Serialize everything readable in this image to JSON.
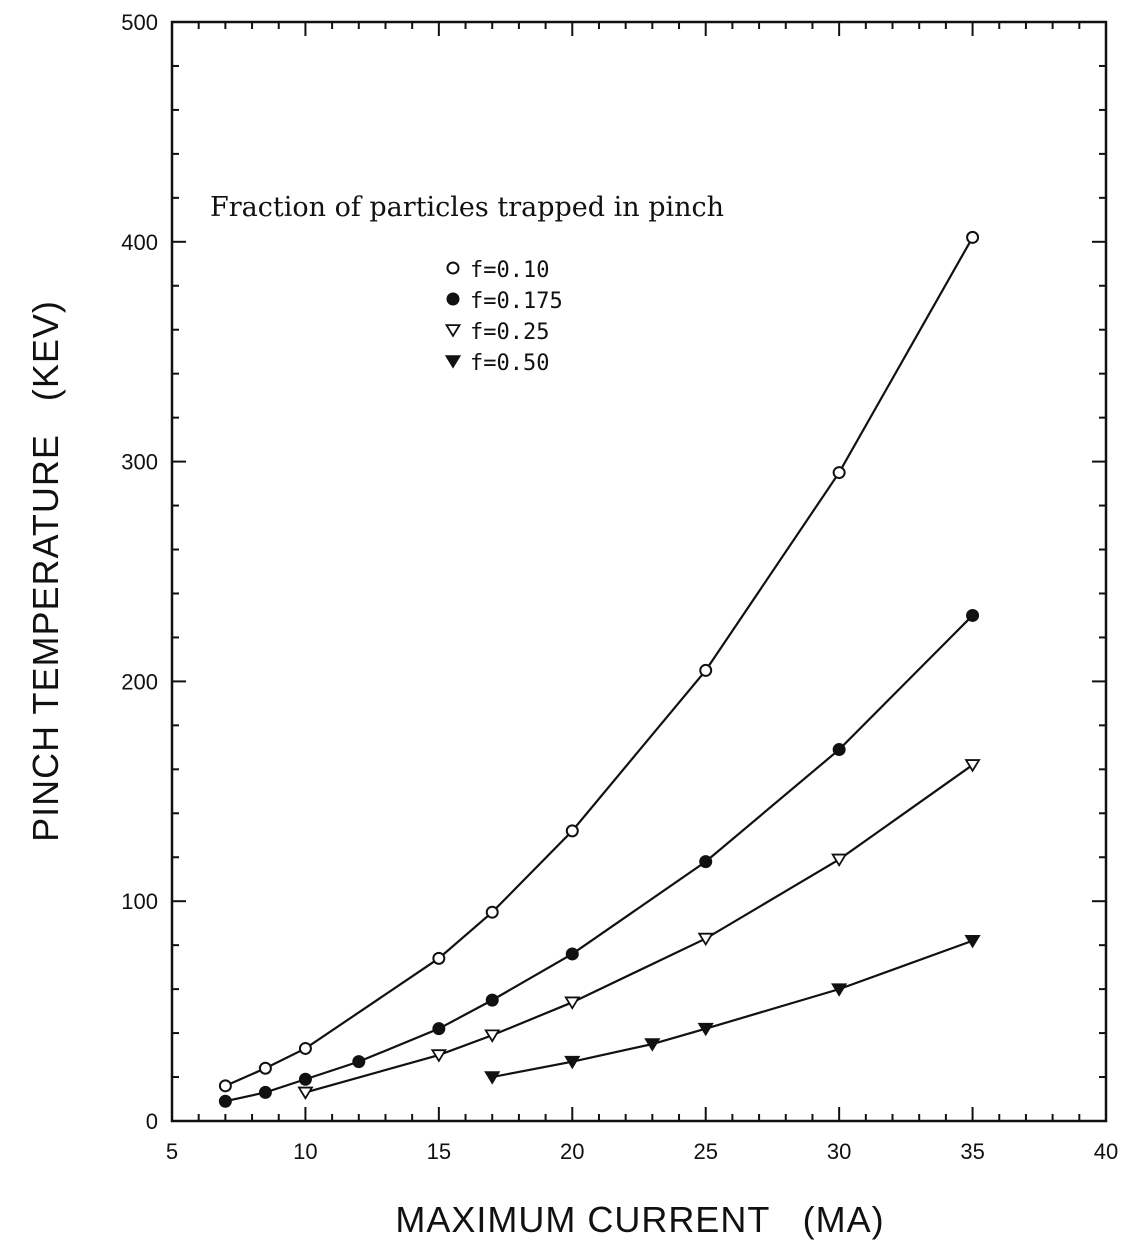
{
  "chart_data": {
    "type": "line",
    "xlabel": "MAXIMUM CURRENT   (MA)",
    "ylabel": "PINCH TEMPERATURE   (KEV)",
    "xlim": [
      5,
      40
    ],
    "ylim": [
      0,
      500
    ],
    "xticks": [
      5,
      10,
      15,
      20,
      25,
      30,
      35,
      40
    ],
    "yticks": [
      0,
      100,
      200,
      300,
      400,
      500
    ],
    "x_tick_labels": [
      "5",
      "10",
      "15",
      "20",
      "25",
      "30",
      "35",
      "40"
    ],
    "y_tick_labels": [
      "0",
      "100",
      "200",
      "300",
      "400",
      "500"
    ],
    "grid": false,
    "legend_title": "Fraction of particles trapped in pinch",
    "legend_position": "upper-left",
    "series": [
      {
        "name": "f=0.10",
        "marker": "open-circle",
        "x": [
          7,
          8.5,
          10,
          15,
          17,
          20,
          25,
          30,
          35
        ],
        "y": [
          16,
          24,
          33,
          74,
          95,
          132,
          205,
          295,
          402
        ]
      },
      {
        "name": "f=0.175",
        "marker": "filled-circle",
        "x": [
          7,
          8.5,
          10,
          12,
          15,
          17,
          20,
          25,
          30,
          35
        ],
        "y": [
          9,
          13,
          19,
          27,
          42,
          55,
          76,
          118,
          169,
          230
        ]
      },
      {
        "name": "f=0.25",
        "marker": "open-triangle-down",
        "x": [
          10,
          15,
          17,
          20,
          25,
          30,
          35
        ],
        "y": [
          13,
          30,
          39,
          54,
          83,
          119,
          162
        ]
      },
      {
        "name": "f=0.50",
        "marker": "filled-triangle-down",
        "x": [
          17,
          20,
          23,
          25,
          30,
          35
        ],
        "y": [
          20,
          27,
          35,
          42,
          60,
          82
        ]
      }
    ]
  }
}
